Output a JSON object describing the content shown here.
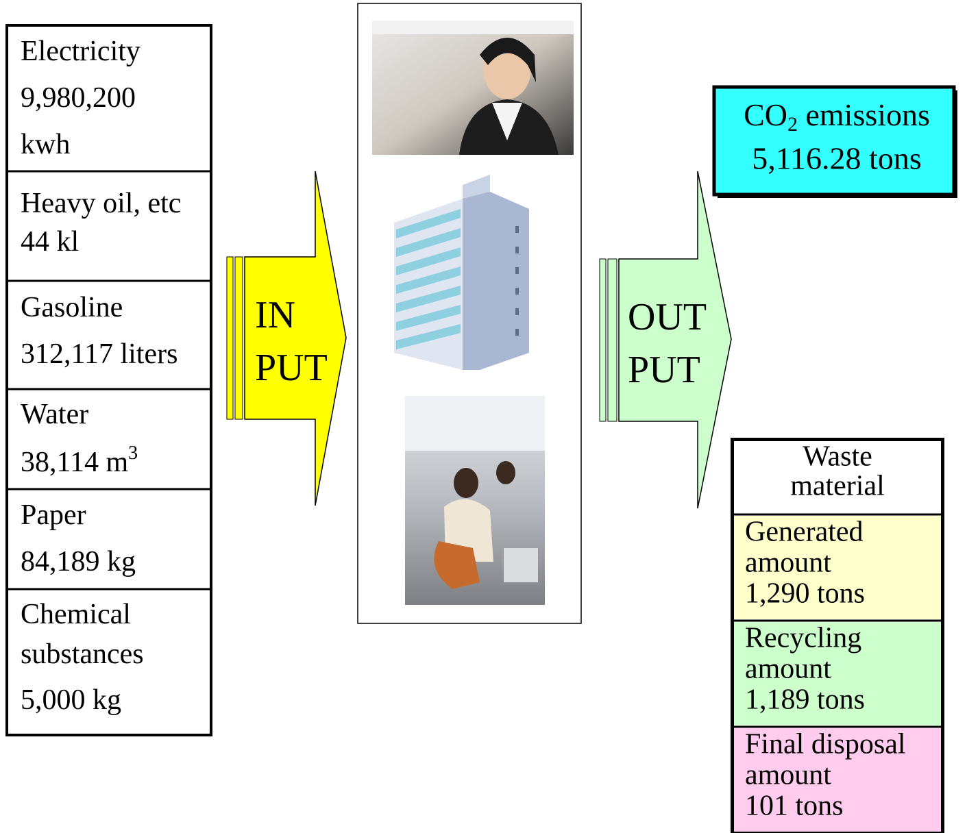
{
  "inputs": [
    {
      "lines": [
        "Electricity",
        "9,980,200",
        "kwh"
      ]
    },
    {
      "lines": [
        "Heavy oil, etc",
        "44 kl"
      ]
    },
    {
      "lines": [
        "Gasoline",
        "312,117 liters"
      ]
    },
    {
      "lines": [
        "Water",
        "38,114 m"
      ],
      "sup": "3"
    },
    {
      "lines": [
        "Paper",
        "84,189 kg"
      ]
    },
    {
      "lines": [
        "Chemical",
        "substances",
        "5,000 kg"
      ]
    }
  ],
  "input_label": [
    "IN",
    "PUT"
  ],
  "output_label": [
    "OUT",
    "PUT"
  ],
  "co2": {
    "prefix": "CO",
    "sub": "2",
    "suffix": " emissions",
    "amount": "5,116.28 tons"
  },
  "waste": {
    "title": [
      "Waste",
      "material"
    ],
    "rows": [
      {
        "lines": [
          "Generated",
          "amount",
          "1,290 tons"
        ]
      },
      {
        "lines": [
          "Recycling",
          "amount",
          "1,189 tons"
        ]
      },
      {
        "lines": [
          "Final disposal",
          "amount",
          "101 tons"
        ]
      }
    ]
  }
}
